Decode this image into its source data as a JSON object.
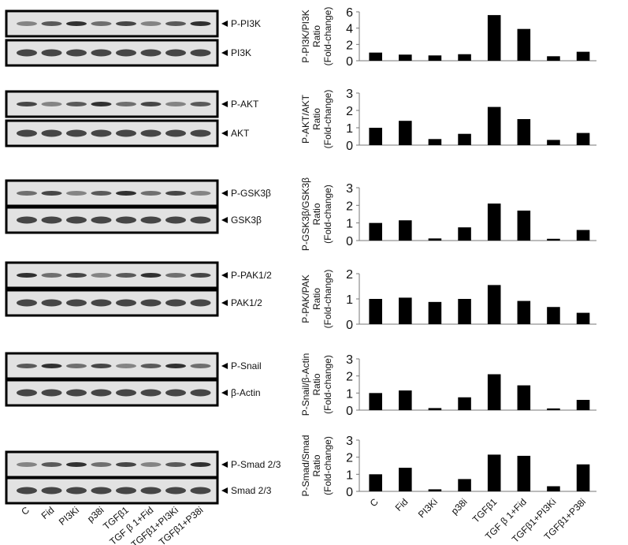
{
  "chart_data": [
    {
      "type": "bar",
      "ylabel": [
        "P-PI3K/PI3K",
        "Ratio",
        "(Fold-change)"
      ],
      "values": [
        1.0,
        0.75,
        0.65,
        0.8,
        5.6,
        3.9,
        0.55,
        1.1
      ],
      "color": "#000000",
      "ylim": [
        0,
        6
      ],
      "yticks": [
        0,
        2,
        4,
        6
      ]
    },
    {
      "type": "bar",
      "ylabel": [
        "P-AKT/AKT",
        "Ratio",
        "(Fold-change)"
      ],
      "values": [
        1.0,
        1.4,
        0.35,
        0.65,
        2.2,
        1.5,
        0.3,
        0.7
      ],
      "color": "#000000",
      "ylim": [
        0,
        3
      ],
      "yticks": [
        0,
        1,
        2,
        3
      ]
    },
    {
      "type": "bar",
      "ylabel": [
        "P-GSK3β/GSK3β",
        "Ratio",
        "(Fold-change)"
      ],
      "values": [
        1.0,
        1.15,
        0.12,
        0.75,
        2.1,
        1.7,
        0.1,
        0.6
      ],
      "color": "#000000",
      "ylim": [
        0,
        3
      ],
      "yticks": [
        0,
        1,
        2,
        3
      ]
    },
    {
      "type": "bar",
      "ylabel": [
        "P-PAK/PAK",
        "Ratio",
        "(Fold-change)"
      ],
      "values": [
        1.0,
        1.05,
        0.88,
        1.0,
        1.55,
        0.92,
        0.68,
        0.45
      ],
      "color": "#000000",
      "ylim": [
        0,
        2
      ],
      "yticks": [
        0,
        1,
        2
      ]
    },
    {
      "type": "bar",
      "ylabel": [
        "P-Snail/β-Actin",
        "Ratio",
        "(Fold-change)"
      ],
      "values": [
        1.0,
        1.15,
        0.12,
        0.75,
        2.1,
        1.45,
        0.1,
        0.6
      ],
      "color": "#000000",
      "ylim": [
        0,
        3
      ],
      "yticks": [
        0,
        1,
        2,
        3
      ]
    },
    {
      "type": "bar",
      "ylabel": [
        "P-Smad/Smad",
        "Ratio",
        "(Fold-change)"
      ],
      "categories": [
        "C",
        "Fid",
        "PI3Ki",
        "p38i",
        "TGFβ1",
        "TGF β 1+Fid",
        "TGFβ1+PI3Ki",
        "TGFβ1+P38i"
      ],
      "values": [
        1.0,
        1.38,
        0.12,
        0.72,
        2.15,
        2.08,
        0.3,
        1.58
      ],
      "color": "#000000",
      "ylim": [
        0,
        3
      ],
      "yticks": [
        0,
        1,
        2,
        3
      ]
    }
  ],
  "blots": {
    "panels": [
      [
        "P-PI3K",
        "PI3K"
      ],
      [
        "P-AKT",
        "AKT"
      ],
      [
        "P-GSK3β",
        "GSK3β"
      ],
      [
        "P-PAK1/2",
        "PAK1/2"
      ],
      [
        "P-Snail",
        "β-Actin"
      ],
      [
        "P-Smad 2/3",
        "Smad 2/3"
      ]
    ],
    "lanes": [
      "C",
      "Fid",
      "PI3Ki",
      "p38i",
      "TGFβ1",
      "TGF β 1+Fid",
      "TGFβ1+PI3Ki",
      "TGFβ1+P38i"
    ]
  }
}
